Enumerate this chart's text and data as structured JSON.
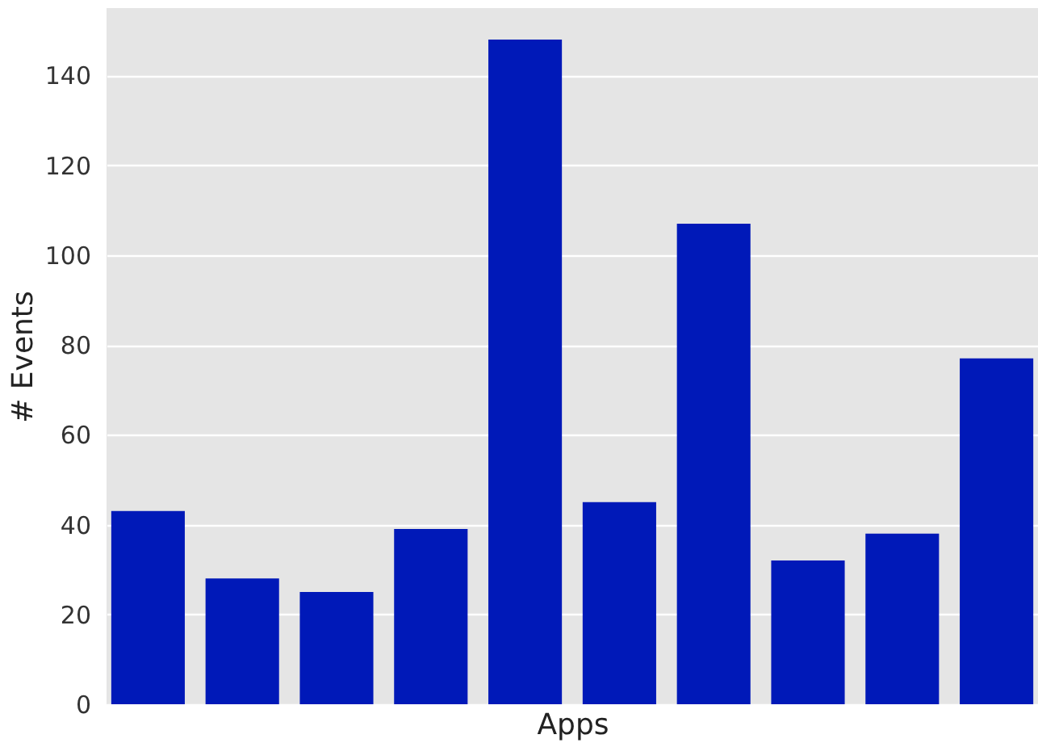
{
  "chart_data": {
    "type": "bar",
    "xlabel": "Apps",
    "ylabel": "# Events",
    "categories": [
      null,
      null,
      null,
      null,
      null,
      null,
      null,
      null,
      null,
      null
    ],
    "values": [
      43,
      28,
      25,
      39,
      148,
      45,
      107,
      32,
      38,
      77
    ],
    "color": "#0019b8",
    "ylim": [
      0,
      155
    ],
    "yticks": [
      0,
      20,
      40,
      60,
      80,
      100,
      120,
      140
    ],
    "grid": "y"
  }
}
